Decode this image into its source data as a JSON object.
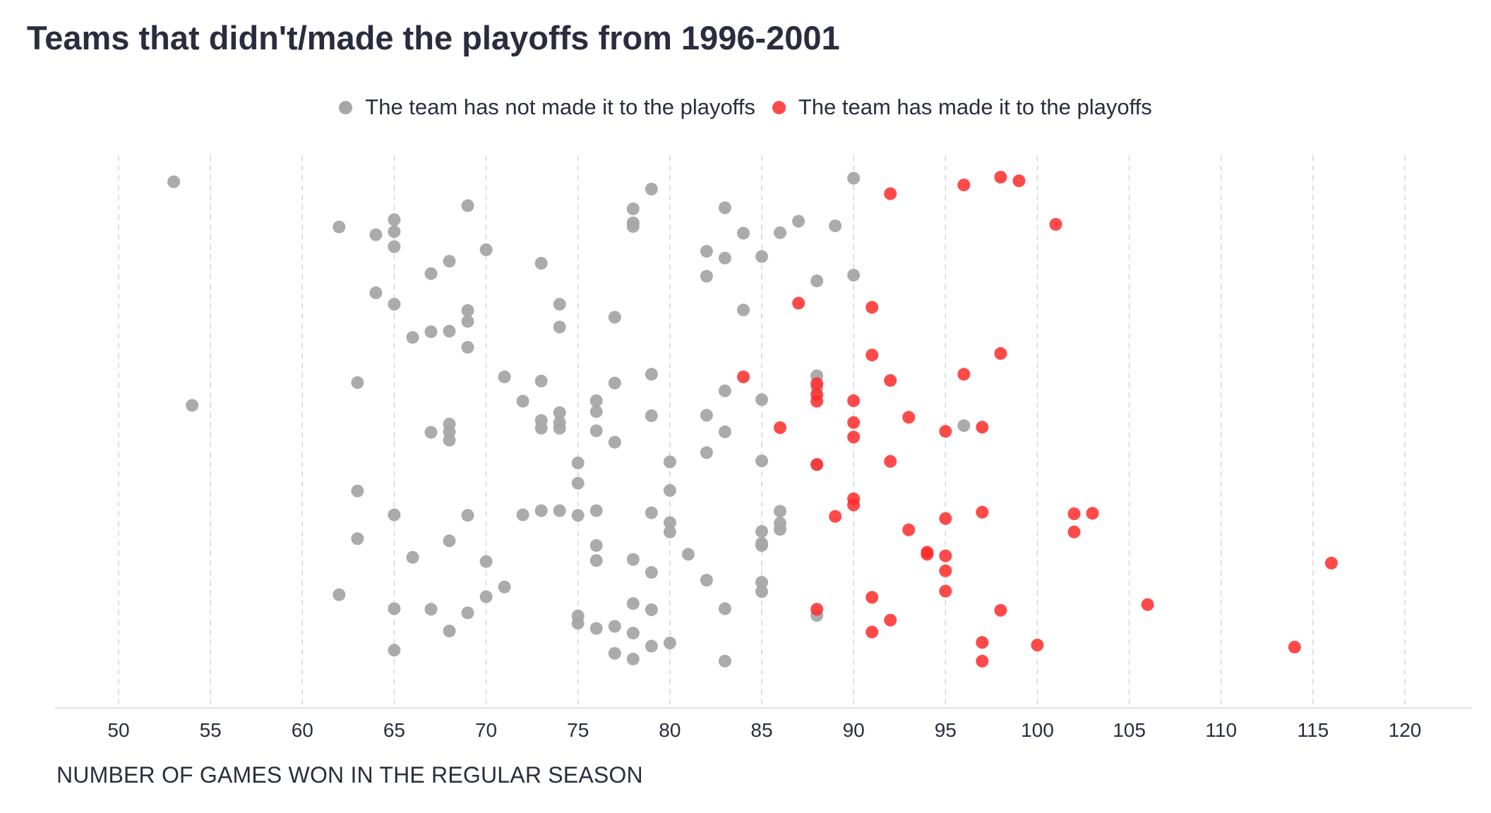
{
  "chart_data": {
    "type": "scatter",
    "title": "Teams that didn't/made the playoffs from 1996-2001",
    "xlabel": "NUMBER OF GAMES WON IN THE REGULAR SEASON",
    "ylabel": "",
    "xlim": [
      46.5,
      123.5
    ],
    "ylim": [
      0,
      1
    ],
    "xticks": [
      50,
      55,
      60,
      65,
      70,
      75,
      80,
      85,
      90,
      95,
      100,
      105,
      110,
      115,
      120
    ],
    "grid": "vertical-dashed",
    "legend_position": "top-center",
    "y_note": "vertical position is random jitter",
    "series": [
      {
        "name": "The team has not made it to the playoffs",
        "color": "#a6a6a6",
        "points": [
          [
            53,
            0.976
          ],
          [
            54,
            0.545
          ],
          [
            62,
            0.889
          ],
          [
            62,
            0.18
          ],
          [
            63,
            0.589
          ],
          [
            63,
            0.38
          ],
          [
            63,
            0.288
          ],
          [
            64,
            0.874
          ],
          [
            64,
            0.762
          ],
          [
            65,
            0.903
          ],
          [
            65,
            0.88
          ],
          [
            65,
            0.851
          ],
          [
            65,
            0.74
          ],
          [
            65,
            0.334
          ],
          [
            65,
            0.153
          ],
          [
            65,
            0.073
          ],
          [
            66,
            0.676
          ],
          [
            66,
            0.252
          ],
          [
            67,
            0.799
          ],
          [
            67,
            0.687
          ],
          [
            67,
            0.493
          ],
          [
            67,
            0.152
          ],
          [
            68,
            0.823
          ],
          [
            68,
            0.688
          ],
          [
            68,
            0.509
          ],
          [
            68,
            0.494
          ],
          [
            68,
            0.478
          ],
          [
            68,
            0.284
          ],
          [
            68,
            0.11
          ],
          [
            69,
            0.93
          ],
          [
            69,
            0.728
          ],
          [
            69,
            0.707
          ],
          [
            69,
            0.657
          ],
          [
            69,
            0.333
          ],
          [
            69,
            0.145
          ],
          [
            70,
            0.845
          ],
          [
            70,
            0.244
          ],
          [
            70,
            0.176
          ],
          [
            71,
            0.6
          ],
          [
            71,
            0.195
          ],
          [
            72,
            0.553
          ],
          [
            72,
            0.334
          ],
          [
            73,
            0.819
          ],
          [
            73,
            0.592
          ],
          [
            73,
            0.516
          ],
          [
            73,
            0.501
          ],
          [
            73,
            0.342
          ],
          [
            74,
            0.74
          ],
          [
            74,
            0.696
          ],
          [
            74,
            0.531
          ],
          [
            74,
            0.512
          ],
          [
            74,
            0.501
          ],
          [
            74,
            0.342
          ],
          [
            75,
            0.434
          ],
          [
            75,
            0.395
          ],
          [
            75,
            0.333
          ],
          [
            75,
            0.139
          ],
          [
            75,
            0.125
          ],
          [
            76,
            0.554
          ],
          [
            76,
            0.533
          ],
          [
            76,
            0.496
          ],
          [
            76,
            0.342
          ],
          [
            76,
            0.275
          ],
          [
            76,
            0.246
          ],
          [
            76,
            0.115
          ],
          [
            77,
            0.715
          ],
          [
            77,
            0.588
          ],
          [
            77,
            0.474
          ],
          [
            77,
            0.119
          ],
          [
            77,
            0.067
          ],
          [
            78,
            0.924
          ],
          [
            78,
            0.897
          ],
          [
            78,
            0.89
          ],
          [
            78,
            0.248
          ],
          [
            78,
            0.163
          ],
          [
            78,
            0.106
          ],
          [
            78,
            0.056
          ],
          [
            79,
            0.962
          ],
          [
            79,
            0.605
          ],
          [
            79,
            0.525
          ],
          [
            79,
            0.338
          ],
          [
            79,
            0.223
          ],
          [
            79,
            0.151
          ],
          [
            79,
            0.081
          ],
          [
            80,
            0.436
          ],
          [
            80,
            0.381
          ],
          [
            80,
            0.319
          ],
          [
            80,
            0.301
          ],
          [
            80,
            0.087
          ],
          [
            81,
            0.258
          ],
          [
            82,
            0.842
          ],
          [
            82,
            0.794
          ],
          [
            82,
            0.526
          ],
          [
            82,
            0.454
          ],
          [
            82,
            0.208
          ],
          [
            83,
            0.926
          ],
          [
            83,
            0.829
          ],
          [
            83,
            0.573
          ],
          [
            83,
            0.494
          ],
          [
            83,
            0.153
          ],
          [
            83,
            0.052
          ],
          [
            84,
            0.877
          ],
          [
            84,
            0.729
          ],
          [
            85,
            0.832
          ],
          [
            85,
            0.556
          ],
          [
            85,
            0.438
          ],
          [
            85,
            0.302
          ],
          [
            85,
            0.279
          ],
          [
            85,
            0.275
          ],
          [
            85,
            0.204
          ],
          [
            85,
            0.186
          ],
          [
            86,
            0.878
          ],
          [
            86,
            0.341
          ],
          [
            86,
            0.318
          ],
          [
            86,
            0.306
          ],
          [
            87,
            0.9
          ],
          [
            88,
            0.785
          ],
          [
            88,
            0.602
          ],
          [
            88,
            0.579
          ],
          [
            88,
            0.431
          ],
          [
            88,
            0.14
          ],
          [
            89,
            0.891
          ],
          [
            90,
            0.983
          ],
          [
            90,
            0.796
          ],
          [
            96,
            0.506
          ]
        ]
      },
      {
        "name": "The team has made it to the playoffs",
        "color": "#ff2a2a",
        "points": [
          [
            84,
            0.6
          ],
          [
            86,
            0.502
          ],
          [
            87,
            0.742
          ],
          [
            88,
            0.587
          ],
          [
            88,
            0.566
          ],
          [
            88,
            0.553
          ],
          [
            88,
            0.431
          ],
          [
            88,
            0.152
          ],
          [
            89,
            0.331
          ],
          [
            90,
            0.554
          ],
          [
            90,
            0.512
          ],
          [
            90,
            0.484
          ],
          [
            90,
            0.365
          ],
          [
            90,
            0.353
          ],
          [
            91,
            0.734
          ],
          [
            91,
            0.642
          ],
          [
            91,
            0.175
          ],
          [
            91,
            0.108
          ],
          [
            92,
            0.953
          ],
          [
            92,
            0.593
          ],
          [
            92,
            0.437
          ],
          [
            92,
            0.131
          ],
          [
            93,
            0.522
          ],
          [
            93,
            0.305
          ],
          [
            94,
            0.262
          ],
          [
            94,
            0.258
          ],
          [
            95,
            0.495
          ],
          [
            95,
            0.327
          ],
          [
            95,
            0.255
          ],
          [
            95,
            0.226
          ],
          [
            95,
            0.187
          ],
          [
            96,
            0.97
          ],
          [
            96,
            0.605
          ],
          [
            97,
            0.503
          ],
          [
            97,
            0.339
          ],
          [
            97,
            0.088
          ],
          [
            97,
            0.052
          ],
          [
            98,
            0.985
          ],
          [
            98,
            0.645
          ],
          [
            98,
            0.15
          ],
          [
            99,
            0.978
          ],
          [
            100,
            0.083
          ],
          [
            101,
            0.894
          ],
          [
            102,
            0.336
          ],
          [
            102,
            0.301
          ],
          [
            103,
            0.337
          ],
          [
            106,
            0.161
          ],
          [
            114,
            0.079
          ],
          [
            116,
            0.241
          ]
        ]
      }
    ]
  }
}
